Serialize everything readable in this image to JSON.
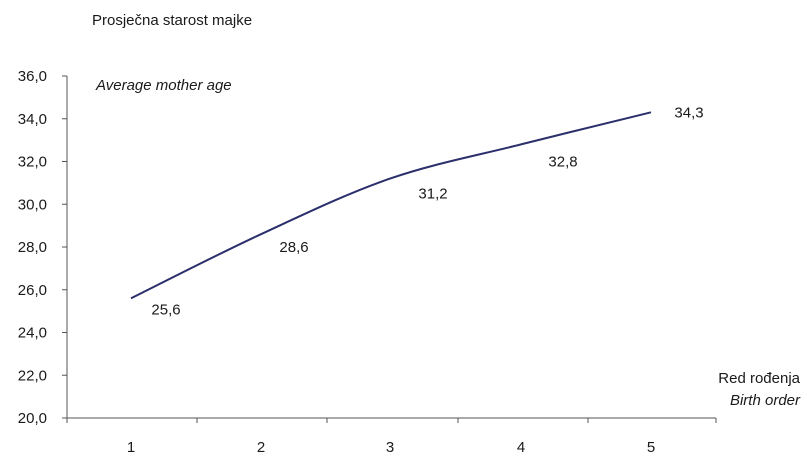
{
  "chart_data": {
    "type": "line",
    "title": "",
    "ylabel": "Prosječna starost majke",
    "ylabel_en": "Average mother age",
    "xlabel": "Red rođenja",
    "xlabel_en": "Birth order",
    "categories": [
      "1",
      "2",
      "3",
      "4",
      "5"
    ],
    "values": [
      25.6,
      28.6,
      31.2,
      32.8,
      34.3
    ],
    "value_labels": [
      "25,6",
      "28,6",
      "31,2",
      "32,8",
      "34,3"
    ],
    "ylim": [
      20.0,
      36.0
    ],
    "yticks": [
      20.0,
      22.0,
      24.0,
      26.0,
      28.0,
      30.0,
      32.0,
      34.0,
      36.0
    ],
    "ytick_labels": [
      "20,0",
      "22,0",
      "24,0",
      "26,0",
      "28,0",
      "30,0",
      "32,0",
      "34,0",
      "36,0"
    ],
    "grid": false,
    "line_color": "#2b2f6b"
  }
}
